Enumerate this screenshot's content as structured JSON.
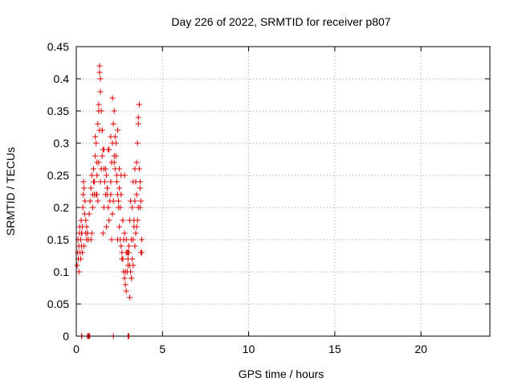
{
  "chart_data": {
    "type": "scatter",
    "title": "Day 226 of 2022, SRMTID for receiver p807",
    "xlabel": "GPS time / hours",
    "ylabel": "SRMTID / TECUs",
    "xlim": [
      0,
      24
    ],
    "ylim": [
      0,
      0.45
    ],
    "xticks": [
      "0",
      "5",
      "10",
      "15",
      "20"
    ],
    "yticks": [
      "0",
      "0.05",
      "0.1",
      "0.15",
      "0.2",
      "0.25",
      "0.3",
      "0.35",
      "0.4",
      "0.45"
    ],
    "grid": true,
    "legend": "none",
    "marker": "plus",
    "color": "#dd0000",
    "series": [
      {
        "x": [
          0.05,
          0.08,
          0.1,
          0.12,
          0.15,
          0.18,
          0.2,
          0.22,
          0.25,
          0.28,
          0.3,
          0.32,
          0.35,
          0.38,
          0.4,
          0.42,
          0.45,
          0.48,
          0.5,
          0.55,
          0.6,
          0.65,
          0.7,
          0.75,
          0.8,
          0.85,
          0.9,
          0.95,
          1.0,
          1.05,
          1.1,
          1.15,
          1.2,
          1.25,
          1.3,
          1.35,
          1.4,
          1.45,
          1.5,
          1.55,
          1.6,
          1.65,
          1.7,
          1.75,
          1.8,
          1.85,
          1.9,
          1.95,
          2.0,
          2.05,
          2.1,
          2.15,
          2.2,
          2.25,
          2.3,
          2.35,
          2.4,
          2.45,
          2.5,
          2.55,
          2.6,
          2.65,
          2.7,
          2.75,
          2.8,
          2.85,
          2.9,
          2.95,
          3.0,
          3.05,
          3.1,
          3.15,
          3.2,
          3.25,
          3.3,
          3.35,
          3.4,
          3.45,
          3.5,
          3.55,
          3.6,
          3.65,
          3.7,
          3.75,
          3.8,
          0.15,
          0.25,
          0.45,
          0.55,
          0.7,
          0.95,
          1.05,
          1.2,
          1.25,
          1.3,
          1.35,
          1.4,
          1.5,
          1.6,
          1.7,
          1.8,
          2.0,
          2.1,
          2.2,
          2.3,
          2.4,
          2.5,
          2.6,
          2.7,
          2.8,
          2.9,
          3.0,
          3.1,
          3.2,
          3.3,
          3.4,
          3.5,
          3.6,
          3.7,
          1.1,
          1.3,
          1.5,
          1.9,
          2.1,
          2.35,
          2.55,
          2.75,
          2.95,
          3.15,
          3.35,
          3.55,
          3.75,
          0.35,
          0.65,
          0.85,
          1.15,
          1.45,
          1.75,
          2.05,
          2.45,
          2.65,
          2.85,
          3.05,
          3.25,
          3.45,
          3.65,
          0.3,
          0.6,
          0.9,
          1.35,
          1.55,
          1.85,
          2.15,
          2.25,
          2.5,
          2.7,
          2.9,
          3.1,
          3.3,
          3.5,
          3.7,
          3.8,
          1.0,
          1.2,
          1.4,
          1.6,
          1.8,
          2.0,
          2.2,
          2.4,
          2.6,
          2.8,
          3.0,
          3.2,
          3.4,
          3.6,
          0.3,
          0.32,
          0.65,
          0.7,
          0.72,
          0.75,
          0.78,
          2.15,
          3.0,
          3.02,
          3.05
        ],
        "y": [
          0.11,
          0.13,
          0.15,
          0.12,
          0.14,
          0.16,
          0.17,
          0.13,
          0.15,
          0.18,
          0.14,
          0.16,
          0.17,
          0.2,
          0.22,
          0.24,
          0.23,
          0.19,
          0.21,
          0.18,
          0.17,
          0.16,
          0.15,
          0.19,
          0.21,
          0.23,
          0.25,
          0.22,
          0.26,
          0.24,
          0.28,
          0.3,
          0.27,
          0.33,
          0.36,
          0.41,
          0.38,
          0.35,
          0.32,
          0.29,
          0.26,
          0.24,
          0.22,
          0.25,
          0.23,
          0.2,
          0.18,
          0.21,
          0.24,
          0.27,
          0.3,
          0.33,
          0.35,
          0.31,
          0.28,
          0.25,
          0.22,
          0.2,
          0.17,
          0.15,
          0.14,
          0.13,
          0.12,
          0.1,
          0.09,
          0.08,
          0.07,
          0.1,
          0.12,
          0.13,
          0.11,
          0.1,
          0.09,
          0.12,
          0.15,
          0.18,
          0.21,
          0.24,
          0.27,
          0.3,
          0.33,
          0.36,
          0.24,
          0.21,
          0.15,
          0.1,
          0.12,
          0.14,
          0.16,
          0.15,
          0.2,
          0.22,
          0.25,
          0.21,
          0.27,
          0.42,
          0.4,
          0.32,
          0.29,
          0.26,
          0.23,
          0.22,
          0.19,
          0.27,
          0.3,
          0.32,
          0.26,
          0.22,
          0.18,
          0.16,
          0.13,
          0.11,
          0.06,
          0.09,
          0.11,
          0.14,
          0.17,
          0.2,
          0.23,
          0.31,
          0.35,
          0.28,
          0.29,
          0.37,
          0.24,
          0.2,
          0.15,
          0.13,
          0.21,
          0.17,
          0.18,
          0.13,
          0.13,
          0.16,
          0.15,
          0.22,
          0.26,
          0.17,
          0.15,
          0.21,
          0.12,
          0.1,
          0.14,
          0.2,
          0.16,
          0.26,
          0.16,
          0.15,
          0.16,
          0.32,
          0.16,
          0.29,
          0.21,
          0.26,
          0.23,
          0.18,
          0.15,
          0.18,
          0.24,
          0.22,
          0.2,
          0.13,
          0.24,
          0.22,
          0.24,
          0.2,
          0.22,
          0.31,
          0.28,
          0.15,
          0.25,
          0.25,
          0.13,
          0.15,
          0.26,
          0.34,
          0.0,
          0.0,
          0.0,
          0.0,
          0.0,
          0.0,
          0.0,
          0.0,
          0.0,
          0.0,
          0.0
        ]
      }
    ]
  }
}
